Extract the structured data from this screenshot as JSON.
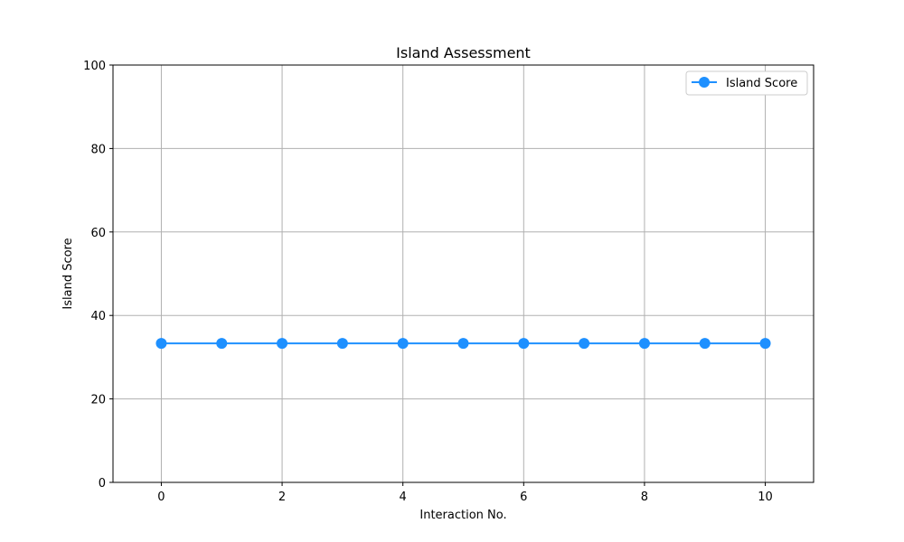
{
  "chart_data": {
    "type": "line",
    "title": "Island Assessment",
    "xlabel": "Interaction No.",
    "ylabel": "Island Score",
    "xlim": [
      -0.8,
      10.8
    ],
    "ylim": [
      0,
      100
    ],
    "xticks": [
      0,
      2,
      4,
      6,
      8,
      10
    ],
    "yticks": [
      0,
      20,
      40,
      60,
      80,
      100
    ],
    "grid": true,
    "legend_position": "upper right",
    "series": [
      {
        "name": "Island Score",
        "color": "#1e90ff",
        "marker": "circle",
        "x": [
          0,
          1,
          2,
          3,
          4,
          5,
          6,
          7,
          8,
          9,
          10
        ],
        "y": [
          33.3,
          33.3,
          33.3,
          33.3,
          33.3,
          33.3,
          33.3,
          33.3,
          33.3,
          33.3,
          33.3
        ]
      }
    ]
  }
}
